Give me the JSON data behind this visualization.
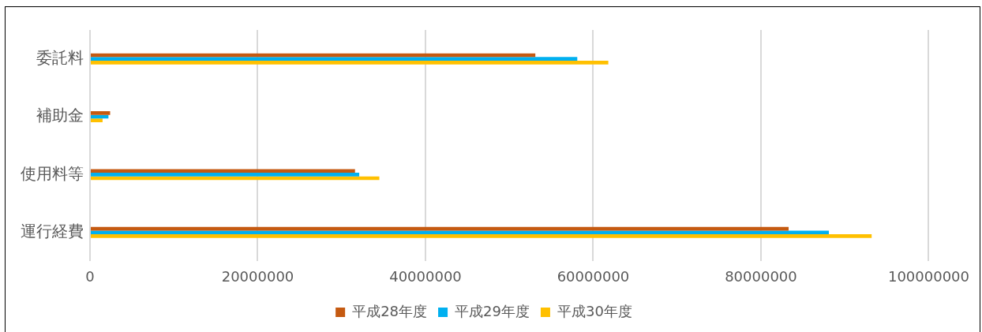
{
  "chart_data": {
    "type": "bar",
    "orientation": "horizontal",
    "categories": [
      "委託料",
      "補助金",
      "使用料等",
      "運行経費"
    ],
    "series": [
      {
        "name": "平成28年度",
        "color": "#c55a11",
        "values": [
          53100000,
          2400000,
          31600000,
          83300000
        ]
      },
      {
        "name": "平成29年度",
        "color": "#00b0f0",
        "values": [
          58100000,
          2200000,
          32100000,
          88100000
        ]
      },
      {
        "name": "平成30年度",
        "color": "#ffc000",
        "values": [
          61800000,
          1500000,
          34500000,
          93200000
        ]
      }
    ],
    "xlim": [
      0,
      100000000
    ],
    "xticks": [
      0,
      20000000,
      40000000,
      60000000,
      80000000,
      100000000
    ],
    "grid": "x",
    "legend": "bottom"
  }
}
